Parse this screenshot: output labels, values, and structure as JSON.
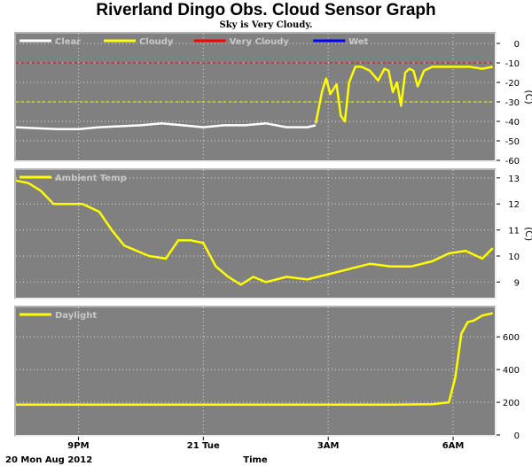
{
  "title": "Riverland Dingo Obs. Cloud Sensor Graph",
  "subtitle": "Sky is Very Cloudy.",
  "footer": {
    "date": "20 Mon Aug 2012",
    "xlabel": "Time"
  },
  "chart_data": [
    {
      "id": "cloud",
      "type": "line",
      "ylim": [
        -60,
        5
      ],
      "yticks": [
        0,
        -10,
        -20,
        -30,
        -40,
        -50,
        -60
      ],
      "yunit": "(C)",
      "legend": [
        {
          "name": "Clear",
          "color": "#ffffff"
        },
        {
          "name": "Cloudy",
          "color": "#ffff00"
        },
        {
          "name": "Very Cloudy",
          "color": "#ff0000"
        },
        {
          "name": "Wet",
          "color": "#0000ff"
        }
      ],
      "thresholds": [
        {
          "value": -10,
          "color": "#ff0000"
        },
        {
          "value": -30,
          "color": "#ffff00"
        }
      ],
      "series": [
        {
          "name": "Clear",
          "color": "#ffffff",
          "x": [
            0,
            0.5,
            1,
            1.5,
            2,
            2.5,
            3,
            3.5,
            4,
            4.5,
            5,
            5.5,
            6,
            6.5,
            7,
            7.2
          ],
          "y": [
            -43,
            -43.5,
            -44,
            -44,
            -43,
            -42.5,
            -42,
            -41,
            -42,
            -43,
            -42,
            -42,
            -41,
            -43,
            -43,
            -42
          ]
        },
        {
          "name": "Cloudy",
          "color": "#ffff00",
          "x": [
            7.2,
            7.35,
            7.45,
            7.55,
            7.7,
            7.8,
            7.9,
            8.0,
            8.15,
            8.3,
            8.5,
            8.7,
            8.85,
            8.95,
            9.05,
            9.15,
            9.25,
            9.35,
            9.45,
            9.55,
            9.65,
            9.8,
            10.0,
            10.3,
            10.6,
            10.9,
            11.2,
            11.45
          ],
          "y": [
            -41,
            -25,
            -18,
            -26,
            -21,
            -37,
            -40,
            -20,
            -12,
            -12,
            -14,
            -19,
            -13,
            -14,
            -25,
            -20,
            -32,
            -15,
            -13,
            -14,
            -22,
            -14,
            -12,
            -12,
            -12,
            -12,
            -13,
            -12
          ]
        }
      ]
    },
    {
      "id": "ambient",
      "type": "line",
      "ylim": [
        8.4,
        13.3
      ],
      "yticks": [
        13,
        12,
        11,
        10,
        9
      ],
      "yunit": "(C)",
      "legend": [
        {
          "name": "Ambient Temp",
          "color": "#ffff00"
        }
      ],
      "series": [
        {
          "name": "Ambient Temp",
          "color": "#ffff00",
          "x": [
            0,
            0.3,
            0.6,
            0.9,
            1.2,
            1.6,
            2.0,
            2.3,
            2.6,
            2.9,
            3.2,
            3.6,
            3.9,
            4.2,
            4.5,
            4.8,
            5.1,
            5.4,
            5.7,
            6.0,
            6.5,
            7.0,
            7.5,
            8.0,
            8.5,
            9.0,
            9.5,
            10.0,
            10.4,
            10.8,
            11.2,
            11.45
          ],
          "y": [
            12.9,
            12.8,
            12.5,
            12.0,
            12.0,
            12.0,
            11.7,
            11.0,
            10.4,
            10.2,
            10.0,
            9.9,
            10.6,
            10.6,
            10.5,
            9.6,
            9.2,
            8.9,
            9.2,
            9.0,
            9.2,
            9.1,
            9.3,
            9.5,
            9.7,
            9.6,
            9.6,
            9.8,
            10.1,
            10.2,
            9.9,
            10.3
          ]
        }
      ]
    },
    {
      "id": "daylight",
      "type": "line",
      "ylim": [
        0,
        780
      ],
      "yticks": [
        600,
        400,
        200,
        0
      ],
      "legend": [
        {
          "name": "Daylight",
          "color": "#ffff00"
        }
      ],
      "series": [
        {
          "name": "Daylight",
          "color": "#ffff00",
          "x": [
            0,
            1,
            2,
            3,
            4,
            5,
            6,
            7,
            8,
            9,
            10,
            10.4,
            10.55,
            10.7,
            10.85,
            11.0,
            11.2,
            11.45
          ],
          "y": [
            185,
            185,
            186,
            185,
            185,
            186,
            185,
            186,
            185,
            186,
            188,
            200,
            350,
            620,
            690,
            700,
            730,
            745
          ]
        }
      ]
    }
  ],
  "xaxis": {
    "ticks": [
      {
        "x": 1.5,
        "label": "9PM"
      },
      {
        "x": 4.5,
        "label": "21 Tue"
      },
      {
        "x": 7.5,
        "label": "3AM"
      },
      {
        "x": 10.5,
        "label": "6AM"
      }
    ],
    "xlim": [
      0,
      11.5
    ]
  }
}
